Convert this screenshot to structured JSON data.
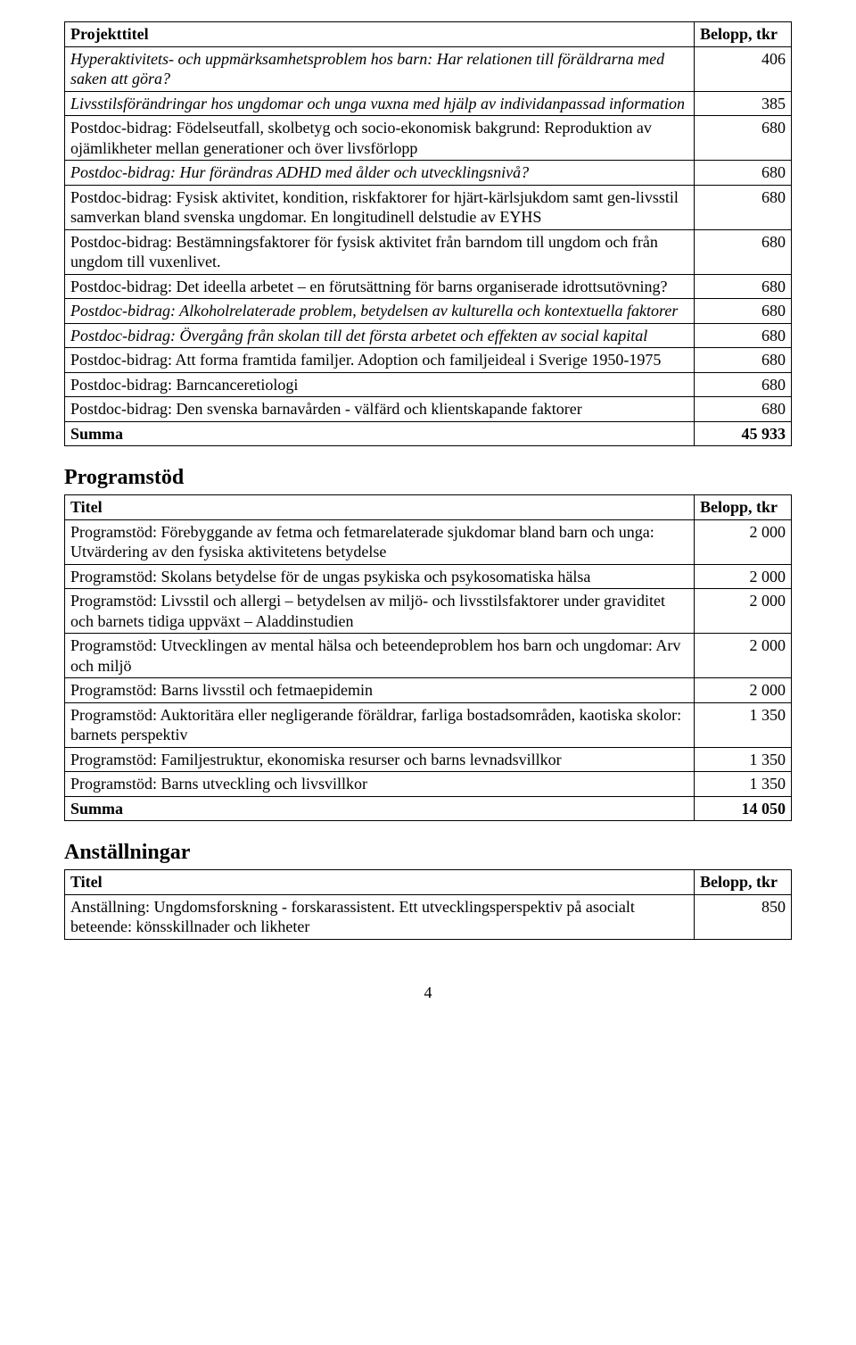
{
  "colors": {
    "text": "#000000",
    "border": "#000000",
    "bg": "#ffffff"
  },
  "table1": {
    "header": {
      "left": "Projekttitel",
      "right": "Belopp, tkr"
    },
    "rows": [
      {
        "title": "Hyperaktivitets- och uppmärksamhetsproblem hos barn: Har relationen till föräldrarna med saken att göra?",
        "amount": "406",
        "italic": true
      },
      {
        "title": "Livsstilsförändringar hos ungdomar och unga vuxna med hjälp av individanpassad information",
        "amount": "385",
        "italic": true
      },
      {
        "title": "Postdoc-bidrag: Födelseutfall, skolbetyg och socio-ekonomisk bakgrund: Reproduktion av ojämlikheter mellan generationer och över livsförlopp",
        "amount": "680"
      },
      {
        "title": "Postdoc-bidrag: Hur förändras ADHD med ålder och utvecklingsnivå?",
        "amount": "680",
        "italic": true
      },
      {
        "title": "Postdoc-bidrag: Fysisk aktivitet, kondition, riskfaktorer for hjärt-kärlsjukdom samt gen-livsstil samverkan bland svenska ungdomar. En longitudinell delstudie av EYHS",
        "amount": "680"
      },
      {
        "title": "Postdoc-bidrag: Bestämningsfaktorer för fysisk aktivitet från barndom till ungdom och från ungdom till vuxenlivet.",
        "amount": "680"
      },
      {
        "title": "Postdoc-bidrag: Det ideella arbetet – en förutsättning för barns organiserade idrottsutövning?",
        "amount": "680"
      },
      {
        "title": "Postdoc-bidrag: Alkoholrelaterade problem, betydelsen av kulturella och kontextuella faktorer",
        "amount": "680",
        "italic": true
      },
      {
        "title": "Postdoc-bidrag: Övergång från skolan till det första arbetet och effekten av social kapital",
        "amount": "680",
        "italic": true
      },
      {
        "title": "Postdoc-bidrag: Att forma framtida familjer. Adoption och familjeideal i Sverige 1950-1975",
        "amount": "680"
      },
      {
        "title": "Postdoc-bidrag: Barncanceretiologi",
        "amount": "680"
      },
      {
        "title": "Postdoc-bidrag: Den svenska barnavården - välfärd och klientskapande faktorer",
        "amount": "680"
      }
    ],
    "sum": {
      "label": "Summa",
      "amount": "45 933"
    }
  },
  "section2": {
    "heading": "Programstöd"
  },
  "table2": {
    "header": {
      "left": "Titel",
      "right": "Belopp, tkr"
    },
    "rows": [
      {
        "title": "Programstöd: Förebyggande av fetma och fetmarelaterade sjukdomar bland barn och unga: Utvärdering av den fysiska aktivitetens betydelse",
        "amount": "2 000"
      },
      {
        "title": "Programstöd: Skolans betydelse för de ungas psykiska och psykosomatiska hälsa",
        "amount": "2 000"
      },
      {
        "title": "Programstöd: Livsstil och allergi – betydelsen av miljö- och livsstilsfaktorer under graviditet och barnets tidiga uppväxt – Aladdinstudien",
        "amount": "2 000"
      },
      {
        "title": "Programstöd: Utvecklingen av mental hälsa och beteendeproblem hos barn och ungdomar: Arv och miljö",
        "amount": "2 000"
      },
      {
        "title": "Programstöd: Barns livsstil och fetmaepidemin",
        "amount": "2 000"
      },
      {
        "title": "Programstöd: Auktoritära eller negligerande föräldrar, farliga bostadsområden, kaotiska skolor: barnets perspektiv",
        "amount": "1 350"
      },
      {
        "title": "Programstöd: Familjestruktur, ekonomiska resurser och barns levnadsvillkor",
        "amount": "1 350"
      },
      {
        "title": "Programstöd: Barns utveckling och livsvillkor",
        "amount": "1 350"
      }
    ],
    "sum": {
      "label": "Summa",
      "amount": "14 050"
    }
  },
  "section3": {
    "heading": "Anställningar"
  },
  "table3": {
    "header": {
      "left": "Titel",
      "right": "Belopp, tkr"
    },
    "rows": [
      {
        "title": "Anställning: Ungdomsforskning - forskarassistent. Ett utvecklingsperspektiv på asocialt beteende: könsskillnader och likheter",
        "amount": "850"
      }
    ]
  },
  "pageNumber": "4"
}
